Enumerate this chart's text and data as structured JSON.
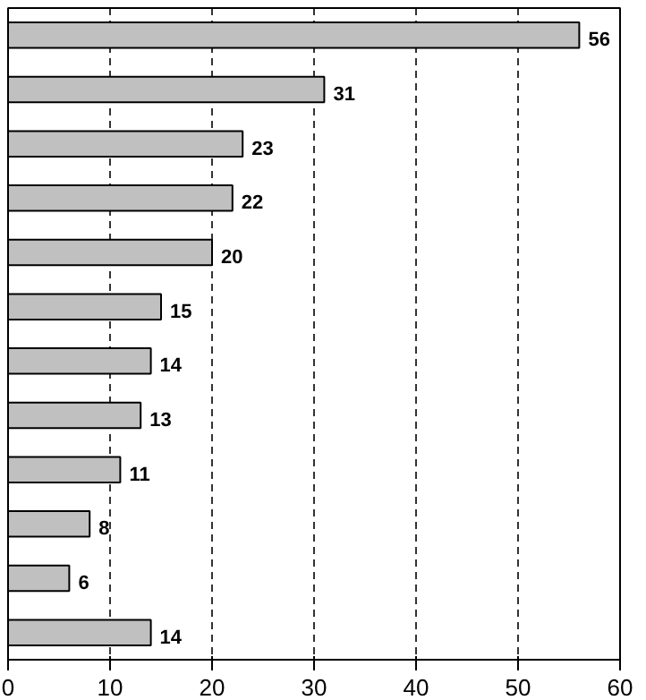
{
  "chart_data": {
    "type": "bar",
    "orientation": "horizontal",
    "categories": [
      null,
      null,
      null,
      null,
      null,
      null,
      null,
      null,
      null,
      null,
      null,
      null
    ],
    "values": [
      56,
      31,
      23,
      22,
      20,
      15,
      14,
      13,
      11,
      8,
      6,
      14
    ],
    "color": "#c0c0c0",
    "xlim": [
      0,
      60
    ],
    "xticks": [
      0,
      10,
      20,
      30,
      40,
      50,
      60
    ],
    "grid": "x",
    "data_labels": true,
    "tick_labels": "x"
  }
}
